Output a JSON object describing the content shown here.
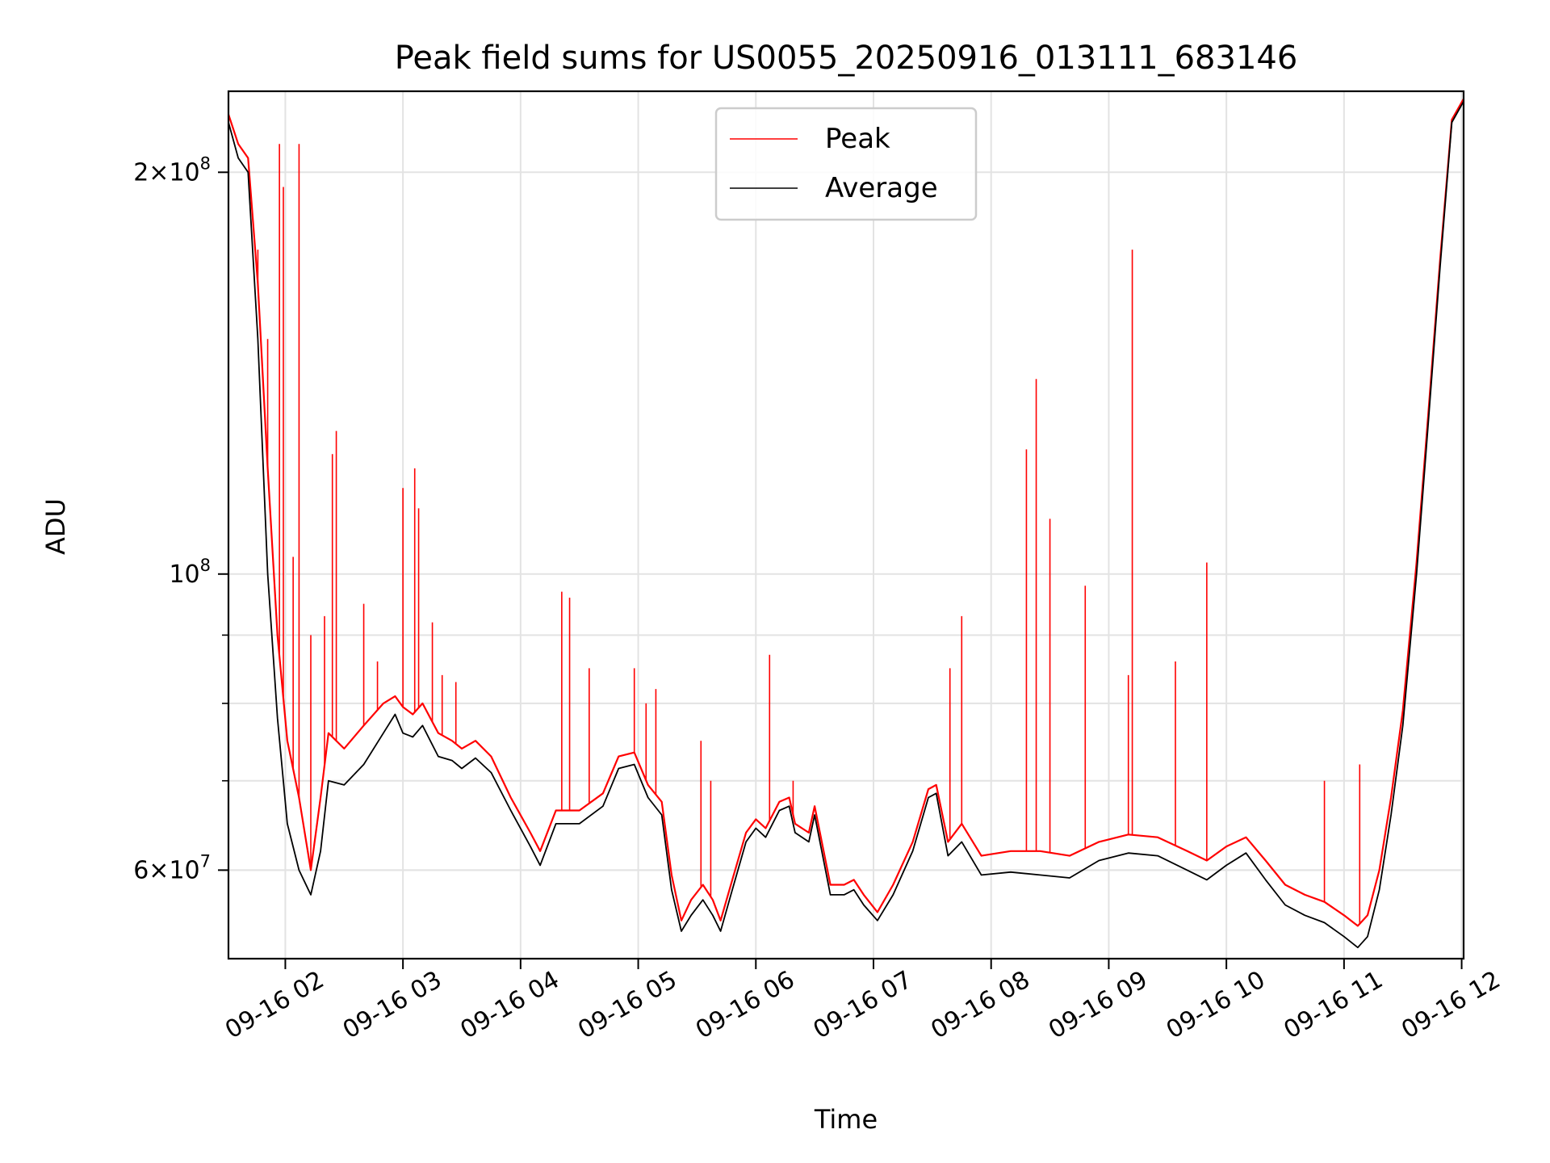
{
  "chart_data": {
    "type": "line",
    "title": "Peak field sums for US0055_20250916_013111_683146",
    "xlabel": "Time",
    "ylabel": "ADU",
    "y_scale": "log",
    "ylim": [
      51500000,
      230000000
    ],
    "xlim": [
      "09-16 01:31",
      "09-16 12:01"
    ],
    "x_ticks": [
      "09-16 02",
      "09-16 03",
      "09-16 04",
      "09-16 05",
      "09-16 06",
      "09-16 07",
      "09-16 08",
      "09-16 09",
      "09-16 10",
      "09-16 11",
      "09-16 12"
    ],
    "y_tick_labels": [
      {
        "value": 60000000,
        "mantissa": "6",
        "exponent": "7"
      },
      {
        "value": 100000000,
        "mantissa": "",
        "exponent": "8"
      },
      {
        "value": 200000000,
        "mantissa": "2",
        "exponent": "8"
      }
    ],
    "grid": true,
    "legend_position": "top-center",
    "series": [
      {
        "name": "Average",
        "color": "#000000",
        "points": [
          [
            "09-16 01:31",
            218000000
          ],
          [
            "09-16 01:36",
            205000000
          ],
          [
            "09-16 01:41",
            200000000
          ],
          [
            "09-16 01:46",
            150000000
          ],
          [
            "09-16 01:51",
            100000000
          ],
          [
            "09-16 01:56",
            78000000
          ],
          [
            "09-16 02:01",
            65000000
          ],
          [
            "09-16 02:07",
            60000000
          ],
          [
            "09-16 02:13",
            57500000
          ],
          [
            "09-16 02:18",
            62000000
          ],
          [
            "09-16 02:22",
            70000000
          ],
          [
            "09-16 02:30",
            69500000
          ],
          [
            "09-16 02:40",
            72000000
          ],
          [
            "09-16 02:50",
            76000000
          ],
          [
            "09-16 02:56",
            78500000
          ],
          [
            "09-16 03:00",
            76000000
          ],
          [
            "09-16 03:05",
            75500000
          ],
          [
            "09-16 03:10",
            77000000
          ],
          [
            "09-16 03:18",
            73000000
          ],
          [
            "09-16 03:25",
            72500000
          ],
          [
            "09-16 03:30",
            71500000
          ],
          [
            "09-16 03:37",
            72800000
          ],
          [
            "09-16 03:45",
            71000000
          ],
          [
            "09-16 03:55",
            66500000
          ],
          [
            "09-16 04:05",
            62500000
          ],
          [
            "09-16 04:10",
            60500000
          ],
          [
            "09-16 04:18",
            65000000
          ],
          [
            "09-16 04:30",
            65000000
          ],
          [
            "09-16 04:42",
            67000000
          ],
          [
            "09-16 04:50",
            71500000
          ],
          [
            "09-16 04:58",
            72000000
          ],
          [
            "09-16 05:05",
            68000000
          ],
          [
            "09-16 05:12",
            66000000
          ],
          [
            "09-16 05:17",
            58000000
          ],
          [
            "09-16 05:22",
            54000000
          ],
          [
            "09-16 05:27",
            55500000
          ],
          [
            "09-16 05:33",
            57000000
          ],
          [
            "09-16 05:38",
            55500000
          ],
          [
            "09-16 05:42",
            54000000
          ],
          [
            "09-16 05:48",
            58000000
          ],
          [
            "09-16 05:55",
            63000000
          ],
          [
            "09-16 06:00",
            64500000
          ],
          [
            "09-16 06:05",
            63500000
          ],
          [
            "09-16 06:12",
            66500000
          ],
          [
            "09-16 06:17",
            67000000
          ],
          [
            "09-16 06:20",
            64000000
          ],
          [
            "09-16 06:27",
            63000000
          ],
          [
            "09-16 06:30",
            66000000
          ],
          [
            "09-16 06:38",
            57500000
          ],
          [
            "09-16 06:45",
            57500000
          ],
          [
            "09-16 06:50",
            58000000
          ],
          [
            "09-16 06:55",
            56500000
          ],
          [
            "09-16 07:02",
            55000000
          ],
          [
            "09-16 07:10",
            57500000
          ],
          [
            "09-16 07:20",
            62000000
          ],
          [
            "09-16 07:28",
            68000000
          ],
          [
            "09-16 07:32",
            68500000
          ],
          [
            "09-16 07:38",
            61500000
          ],
          [
            "09-16 07:45",
            63000000
          ],
          [
            "09-16 07:55",
            59500000
          ],
          [
            "09-16 08:10",
            59800000
          ],
          [
            "09-16 08:25",
            59500000
          ],
          [
            "09-16 08:40",
            59200000
          ],
          [
            "09-16 08:55",
            61000000
          ],
          [
            "09-16 09:10",
            61800000
          ],
          [
            "09-16 09:25",
            61500000
          ],
          [
            "09-16 09:40",
            60000000
          ],
          [
            "09-16 09:50",
            59000000
          ],
          [
            "09-16 10:00",
            60500000
          ],
          [
            "09-16 10:10",
            61800000
          ],
          [
            "09-16 10:20",
            59000000
          ],
          [
            "09-16 10:30",
            56500000
          ],
          [
            "09-16 10:40",
            55500000
          ],
          [
            "09-16 10:50",
            54800000
          ],
          [
            "09-16 11:00",
            53500000
          ],
          [
            "09-16 11:07",
            52500000
          ],
          [
            "09-16 11:12",
            53500000
          ],
          [
            "09-16 11:18",
            58000000
          ],
          [
            "09-16 11:24",
            66000000
          ],
          [
            "09-16 11:30",
            77000000
          ],
          [
            "09-16 11:37",
            100000000
          ],
          [
            "09-16 11:43",
            130000000
          ],
          [
            "09-16 11:49",
            170000000
          ],
          [
            "09-16 11:55",
            218000000
          ],
          [
            "09-16 12:01",
            226000000
          ]
        ]
      },
      {
        "name": "Peak",
        "color": "#ff0000",
        "points": [
          [
            "09-16 01:31",
            221000000
          ],
          [
            "09-16 01:36",
            210000000
          ],
          [
            "09-16 01:41",
            205000000
          ],
          [
            "09-16 01:46",
            165000000
          ],
          [
            "09-16 01:51",
            120000000
          ],
          [
            "09-16 01:56",
            90000000
          ],
          [
            "09-16 02:01",
            75000000
          ],
          [
            "09-16 02:07",
            68000000
          ],
          [
            "09-16 02:13",
            60000000
          ],
          [
            "09-16 02:18",
            68000000
          ],
          [
            "09-16 02:22",
            76000000
          ],
          [
            "09-16 02:30",
            74000000
          ],
          [
            "09-16 02:40",
            77000000
          ],
          [
            "09-16 02:50",
            80000000
          ],
          [
            "09-16 02:56",
            81000000
          ],
          [
            "09-16 03:00",
            79500000
          ],
          [
            "09-16 03:05",
            78500000
          ],
          [
            "09-16 03:10",
            80000000
          ],
          [
            "09-16 03:18",
            76000000
          ],
          [
            "09-16 03:25",
            75000000
          ],
          [
            "09-16 03:30",
            74000000
          ],
          [
            "09-16 03:37",
            75000000
          ],
          [
            "09-16 03:45",
            73000000
          ],
          [
            "09-16 03:55",
            68000000
          ],
          [
            "09-16 04:05",
            64000000
          ],
          [
            "09-16 04:10",
            62000000
          ],
          [
            "09-16 04:18",
            66500000
          ],
          [
            "09-16 04:30",
            66500000
          ],
          [
            "09-16 04:42",
            68500000
          ],
          [
            "09-16 04:50",
            73000000
          ],
          [
            "09-16 04:58",
            73500000
          ],
          [
            "09-16 05:05",
            69500000
          ],
          [
            "09-16 05:12",
            67500000
          ],
          [
            "09-16 05:17",
            59500000
          ],
          [
            "09-16 05:22",
            55000000
          ],
          [
            "09-16 05:27",
            57000000
          ],
          [
            "09-16 05:33",
            58500000
          ],
          [
            "09-16 05:38",
            57000000
          ],
          [
            "09-16 05:42",
            55000000
          ],
          [
            "09-16 05:48",
            59000000
          ],
          [
            "09-16 05:55",
            64000000
          ],
          [
            "09-16 06:00",
            65500000
          ],
          [
            "09-16 06:05",
            64500000
          ],
          [
            "09-16 06:12",
            67500000
          ],
          [
            "09-16 06:17",
            68000000
          ],
          [
            "09-16 06:20",
            65000000
          ],
          [
            "09-16 06:27",
            64000000
          ],
          [
            "09-16 06:30",
            67000000
          ],
          [
            "09-16 06:38",
            58500000
          ],
          [
            "09-16 06:45",
            58500000
          ],
          [
            "09-16 06:50",
            59000000
          ],
          [
            "09-16 06:55",
            57500000
          ],
          [
            "09-16 07:02",
            55800000
          ],
          [
            "09-16 07:10",
            58500000
          ],
          [
            "09-16 07:20",
            63000000
          ],
          [
            "09-16 07:28",
            69000000
          ],
          [
            "09-16 07:32",
            69500000
          ],
          [
            "09-16 07:38",
            63000000
          ],
          [
            "09-16 07:45",
            65000000
          ],
          [
            "09-16 07:55",
            61500000
          ],
          [
            "09-16 08:10",
            62000000
          ],
          [
            "09-16 08:25",
            62000000
          ],
          [
            "09-16 08:40",
            61500000
          ],
          [
            "09-16 08:55",
            63000000
          ],
          [
            "09-16 09:10",
            63800000
          ],
          [
            "09-16 09:25",
            63500000
          ],
          [
            "09-16 09:40",
            62000000
          ],
          [
            "09-16 09:50",
            61000000
          ],
          [
            "09-16 10:00",
            62500000
          ],
          [
            "09-16 10:10",
            63500000
          ],
          [
            "09-16 10:20",
            61000000
          ],
          [
            "09-16 10:30",
            58500000
          ],
          [
            "09-16 10:40",
            57500000
          ],
          [
            "09-16 10:50",
            56800000
          ],
          [
            "09-16 11:00",
            55500000
          ],
          [
            "09-16 11:07",
            54500000
          ],
          [
            "09-16 11:12",
            55500000
          ],
          [
            "09-16 11:18",
            60000000
          ],
          [
            "09-16 11:24",
            68000000
          ],
          [
            "09-16 11:30",
            79000000
          ],
          [
            "09-16 11:37",
            102000000
          ],
          [
            "09-16 11:43",
            132000000
          ],
          [
            "09-16 11:49",
            172000000
          ],
          [
            "09-16 11:55",
            219000000
          ],
          [
            "09-16 12:01",
            227000000
          ]
        ],
        "spikes": [
          [
            "09-16 01:46",
            175000000
          ],
          [
            "09-16 01:51",
            150000000
          ],
          [
            "09-16 01:57",
            210000000
          ],
          [
            "09-16 01:59",
            195000000
          ],
          [
            "09-16 02:04",
            103000000
          ],
          [
            "09-16 02:07",
            210000000
          ],
          [
            "09-16 02:13",
            90000000
          ],
          [
            "09-16 02:20",
            93000000
          ],
          [
            "09-16 02:24",
            123000000
          ],
          [
            "09-16 02:26",
            128000000
          ],
          [
            "09-16 02:40",
            95000000
          ],
          [
            "09-16 02:47",
            86000000
          ],
          [
            "09-16 03:00",
            116000000
          ],
          [
            "09-16 03:06",
            120000000
          ],
          [
            "09-16 03:08",
            112000000
          ],
          [
            "09-16 03:15",
            92000000
          ],
          [
            "09-16 03:20",
            84000000
          ],
          [
            "09-16 03:27",
            83000000
          ],
          [
            "09-16 04:21",
            97000000
          ],
          [
            "09-16 04:25",
            96000000
          ],
          [
            "09-16 04:35",
            85000000
          ],
          [
            "09-16 04:58",
            85000000
          ],
          [
            "09-16 05:04",
            80000000
          ],
          [
            "09-16 05:09",
            82000000
          ],
          [
            "09-16 05:32",
            75000000
          ],
          [
            "09-16 05:37",
            70000000
          ],
          [
            "09-16 06:07",
            87000000
          ],
          [
            "09-16 06:19",
            70000000
          ],
          [
            "09-16 07:39",
            85000000
          ],
          [
            "09-16 07:45",
            93000000
          ],
          [
            "09-16 08:18",
            124000000
          ],
          [
            "09-16 08:23",
            140000000
          ],
          [
            "09-16 08:30",
            110000000
          ],
          [
            "09-16 08:48",
            98000000
          ],
          [
            "09-16 09:10",
            84000000
          ],
          [
            "09-16 09:12",
            175000000
          ],
          [
            "09-16 09:34",
            86000000
          ],
          [
            "09-16 09:50",
            102000000
          ],
          [
            "09-16 10:50",
            70000000
          ],
          [
            "09-16 11:08",
            72000000
          ]
        ]
      }
    ]
  }
}
